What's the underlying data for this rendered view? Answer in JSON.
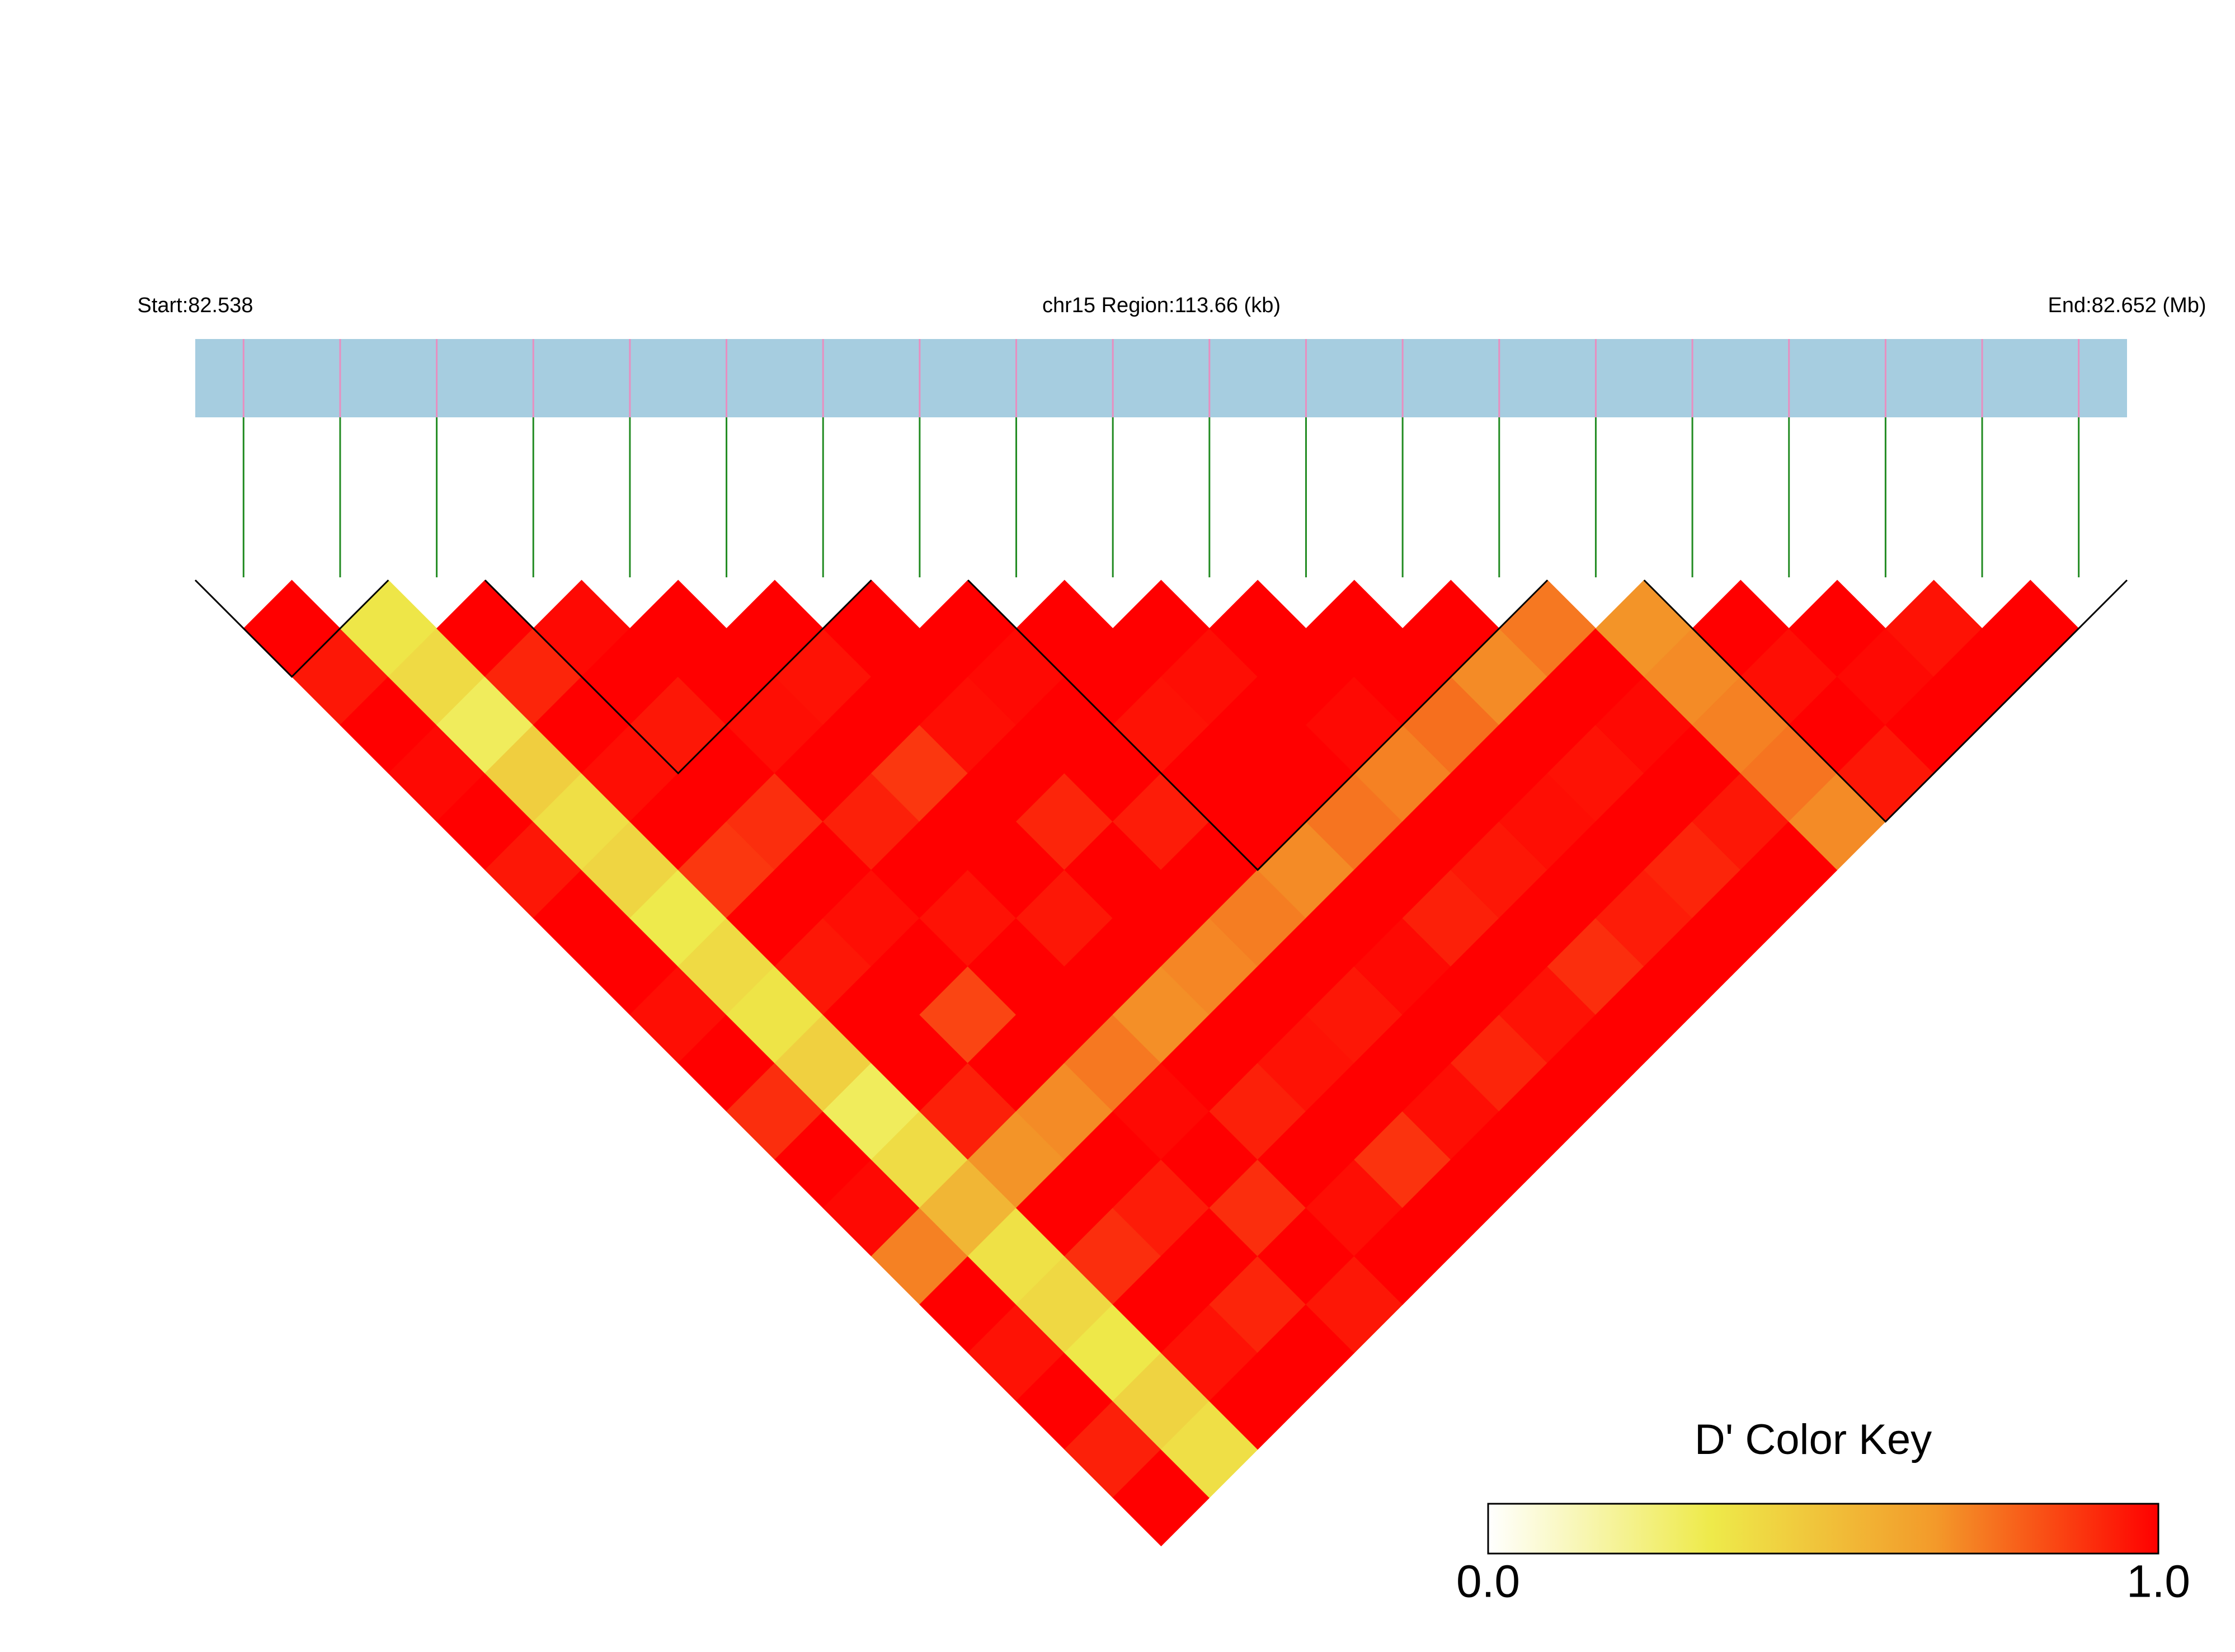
{
  "chart_data": {
    "type": "ld_heatmap",
    "start_label": "Start:82.538",
    "region_label": "chr15 Region:113.66 (kb)",
    "end_label": "End:82.652 (Mb)",
    "key_title": "D' Color Key",
    "clim": [
      0,
      1
    ],
    "key_ticks": [
      {
        "value": 0,
        "label": "0.0"
      },
      {
        "value": 1,
        "label": "1.0"
      }
    ],
    "colorscale": [
      "#ffffff",
      "#eeea4a",
      "#f39a2a",
      "#ff0000"
    ],
    "blocks": [
      [
        0,
        1
      ],
      [
        3,
        6
      ],
      [
        8,
        13
      ],
      [
        15,
        19
      ]
    ],
    "matrix": [
      [
        1,
        0.95,
        1,
        0.98,
        1,
        0.95,
        1,
        1,
        0.97,
        1,
        0.9,
        1,
        0.98,
        0.72,
        1,
        0.96,
        1,
        0.93,
        1
      ],
      [
        0.35,
        0.4,
        0.3,
        0.45,
        0.38,
        0.42,
        0.33,
        0.4,
        0.36,
        0.44,
        0.3,
        0.39,
        0.55,
        0.37,
        0.41,
        0.34,
        0.43,
        0.38
      ],
      [
        1,
        0.92,
        1,
        0.97,
        1,
        0.88,
        1,
        0.95,
        1,
        1,
        0.93,
        0.68,
        1,
        0.9,
        1,
        0.96,
        1
      ],
      [
        0.98,
        1,
        0.95,
        1,
        0.9,
        1,
        0.97,
        1,
        0.85,
        1,
        0.7,
        1,
        0.94,
        1,
        0.92,
        1
      ],
      [
        1,
        1,
        0.97,
        1,
        0.93,
        1,
        0.96,
        1,
        1,
        0.74,
        0.98,
        1,
        0.9,
        1,
        0.95
      ],
      [
        1,
        0.96,
        1,
        0.88,
        1,
        1,
        0.95,
        1,
        0.69,
        1,
        0.93,
        1,
        0.97,
        1
      ],
      [
        1,
        1,
        0.97,
        1,
        0.92,
        1,
        1,
        0.71,
        1,
        0.96,
        1,
        0.89,
        1
      ],
      [
        1,
        0.98,
        1,
        1,
        0.94,
        1,
        0.73,
        1,
        0.95,
        1,
        0.97,
        1
      ],
      [
        1,
        1,
        0.96,
        1,
        1,
        0.7,
        1,
        0.98,
        1,
        0.92,
        1
      ],
      [
        1,
        0.97,
        1,
        1,
        0.75,
        1,
        0.93,
        1,
        0.96,
        1
      ],
      [
        1,
        1,
        0.98,
        0.72,
        1,
        0.95,
        1,
        0.9,
        1
      ],
      [
        1,
        1,
        0.76,
        1,
        0.97,
        1,
        0.94,
        1
      ],
      [
        1,
        0.7,
        1,
        0.96,
        1,
        0.92,
        1
      ],
      [
        0.74,
        1,
        0.98,
        1,
        0.95,
        1
      ],
      [
        0.68,
        0.7,
        0.72,
        0.75,
        0.7
      ],
      [
        1,
        0.97,
        1,
        0.95
      ],
      [
        1,
        0.98,
        1
      ],
      [
        0.96,
        1
      ],
      [
        1
      ]
    ]
  }
}
